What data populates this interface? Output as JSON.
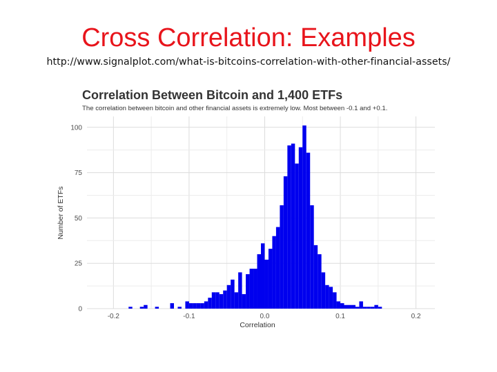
{
  "slide": {
    "title": "Cross Correlation: Examples",
    "url": "http://www.signalplot.com/what-is-bitcoins-correlation-with-other-financial-assets/"
  },
  "colors": {
    "title": "#e8141b",
    "bar": "#0000ee",
    "grid": "#dcdcdc"
  },
  "chart_data": {
    "type": "bar",
    "title": "Correlation Between Bitcoin and 1,400 ETFs",
    "subtitle": "The correlation between bitcoin and other financial assets is extremely low. Most between -0.1 and +0.1.",
    "xlabel": "Correlation",
    "ylabel": "Number of ETFs",
    "xlim": [
      -0.235,
      0.225
    ],
    "ylim": [
      0,
      106
    ],
    "xticks": [
      "-0.2",
      "-0.1",
      "0.0",
      "0.1",
      "0.2"
    ],
    "xtick_values": [
      -0.2,
      -0.1,
      0.0,
      0.1,
      0.2
    ],
    "yticks": [
      "0",
      "25",
      "50",
      "75",
      "100"
    ],
    "ytick_values": [
      0,
      25,
      50,
      75,
      100
    ],
    "grid": true,
    "bin_width": 0.005,
    "bin_starts": [
      -0.18,
      -0.165,
      -0.16,
      -0.145,
      -0.125,
      -0.115,
      -0.105,
      -0.1,
      -0.095,
      -0.09,
      -0.085,
      -0.08,
      -0.075,
      -0.07,
      -0.065,
      -0.06,
      -0.055,
      -0.05,
      -0.045,
      -0.04,
      -0.035,
      -0.03,
      -0.025,
      -0.02,
      -0.015,
      -0.01,
      -0.005,
      0.0,
      0.005,
      0.01,
      0.015,
      0.02,
      0.025,
      0.03,
      0.035,
      0.04,
      0.045,
      0.05,
      0.055,
      0.06,
      0.065,
      0.07,
      0.075,
      0.08,
      0.085,
      0.09,
      0.095,
      0.1,
      0.105,
      0.11,
      0.115,
      0.12,
      0.125,
      0.13,
      0.135,
      0.14,
      0.145,
      0.15
    ],
    "values": [
      1,
      1,
      2,
      1,
      3,
      1,
      4,
      3,
      3,
      3,
      3,
      4,
      6,
      9,
      9,
      8,
      10,
      13,
      16,
      9,
      20,
      8,
      19,
      22,
      22,
      30,
      36,
      27,
      33,
      40,
      45,
      57,
      73,
      90,
      91,
      80,
      89,
      101,
      86,
      57,
      35,
      30,
      20,
      13,
      12,
      9,
      4,
      3,
      2,
      2,
      2,
      1,
      4,
      1,
      1,
      1,
      2,
      1
    ]
  }
}
